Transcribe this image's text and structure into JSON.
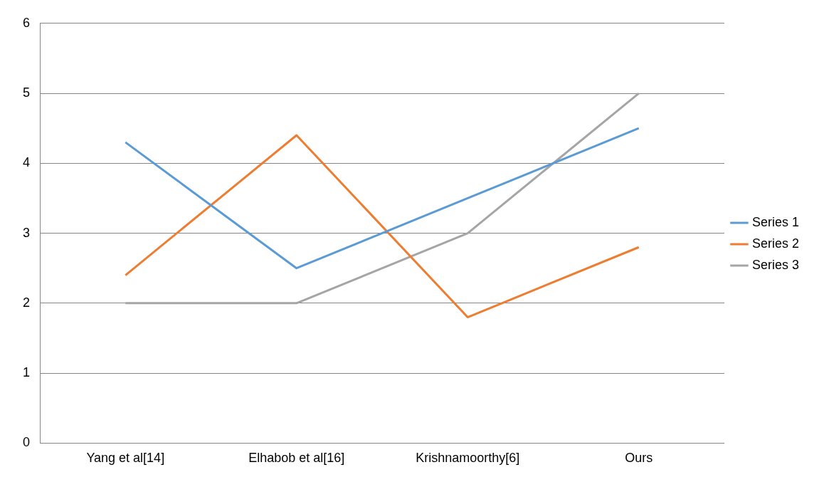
{
  "chart_data": {
    "type": "line",
    "categories": [
      "Yang et al[14]",
      "Elhabob et al[16]",
      "Krishnamoorthy[6]",
      "Ours"
    ],
    "series": [
      {
        "name": "Series 1",
        "color": "#5b9bd5",
        "values": [
          4.3,
          2.5,
          3.5,
          4.5
        ]
      },
      {
        "name": "Series 2",
        "color": "#ed7d31",
        "values": [
          2.4,
          4.4,
          1.8,
          2.8
        ]
      },
      {
        "name": "Series 3",
        "color": "#a5a5a5",
        "values": [
          2,
          2,
          3,
          5
        ]
      }
    ],
    "ylim": [
      0,
      6
    ],
    "yticks": [
      0,
      1,
      2,
      3,
      4,
      5,
      6
    ],
    "grid": "y",
    "legend": "right",
    "marker": "none",
    "line_style": "solid"
  }
}
